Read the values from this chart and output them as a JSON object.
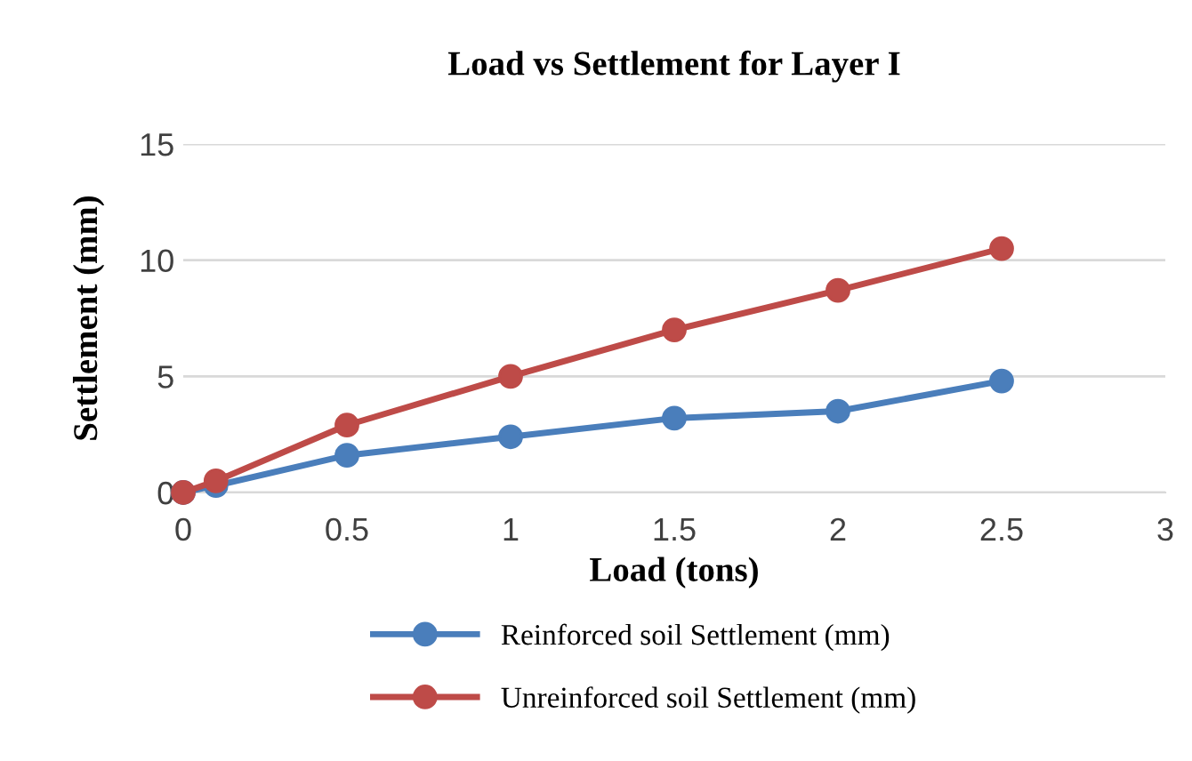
{
  "chart_data": {
    "type": "line",
    "title": "Load vs Settlement for Layer I",
    "xlabel": "Load (tons)",
    "ylabel": "Settlement (mm)",
    "x": [
      0,
      0.1,
      0.5,
      1,
      1.5,
      2,
      2.5
    ],
    "series": [
      {
        "name": "Reinforced soil Settlement (mm)",
        "color": "#4a7ebb",
        "values": [
          0,
          0.3,
          1.6,
          2.4,
          3.2,
          3.5,
          4.8
        ]
      },
      {
        "name": "Unreinforced soil Settlement (mm)",
        "color": "#be4b48",
        "values": [
          0,
          0.5,
          2.9,
          5.0,
          7.0,
          8.7,
          10.5
        ]
      }
    ],
    "xlim": [
      0,
      3
    ],
    "xticks": [
      0,
      0.5,
      1,
      1.5,
      2,
      2.5,
      3
    ],
    "ylim": [
      0,
      15
    ],
    "yticks": [
      0,
      5,
      10,
      15
    ],
    "grid": "y",
    "legend": "bottom",
    "marker": "circle",
    "line_style": "solid"
  }
}
